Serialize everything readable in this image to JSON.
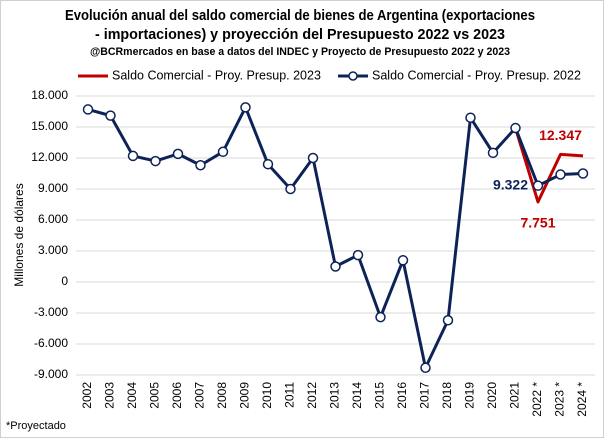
{
  "chart_data": {
    "type": "line",
    "title": [
      "Evolución anual del saldo comercial de bienes de Argentina (exportaciones",
      "- importaciones) y proyección del Presupuesto 2022 vs 2023"
    ],
    "subtitle": "@BCRmercados en base a datos del INDEC y Proyecto de Presupuesto 2022 y 2023",
    "ylabel": "Millones de dólares",
    "footnote": "*Proyectado",
    "categories": [
      "2002",
      "2003",
      "2004",
      "2005",
      "2006",
      "2007",
      "2008",
      "2009",
      "2010",
      "2011",
      "2012",
      "2013",
      "2014",
      "2015",
      "2016",
      "2017",
      "2018",
      "2019",
      "2020",
      "2021",
      "2022 *",
      "2023 *",
      "2024 *"
    ],
    "series": [
      {
        "name": "Saldo Comercial - Proy. Presup. 2023",
        "color": "#c00000",
        "values": [
          null,
          null,
          null,
          null,
          null,
          null,
          null,
          null,
          null,
          null,
          null,
          null,
          null,
          null,
          null,
          null,
          null,
          null,
          null,
          14900,
          7751,
          12347,
          12200
        ],
        "value_labels": [
          null,
          null,
          null,
          null,
          null,
          null,
          null,
          null,
          null,
          null,
          null,
          null,
          null,
          null,
          null,
          null,
          null,
          null,
          null,
          null,
          "7.751",
          "12.347",
          null
        ]
      },
      {
        "name": "Saldo Comercial - Proy. Presup. 2022",
        "color": "#0d2357",
        "markers": true,
        "values": [
          16700,
          16100,
          12200,
          11700,
          12400,
          11300,
          12600,
          16900,
          11400,
          9000,
          12000,
          1500,
          2600,
          -3400,
          2100,
          -8300,
          -3700,
          15900,
          12500,
          14900,
          9322,
          10400,
          10500
        ],
        "value_labels": [
          null,
          null,
          null,
          null,
          null,
          null,
          null,
          null,
          null,
          null,
          null,
          null,
          null,
          null,
          null,
          null,
          null,
          null,
          null,
          null,
          "9.322",
          null,
          null
        ]
      }
    ],
    "ylim": [
      -9000,
      18000
    ],
    "yticks": [
      {
        "value": -9000,
        "label": "-9.000"
      },
      {
        "value": -6000,
        "label": "-6.000"
      },
      {
        "value": -3000,
        "label": "-3.000"
      },
      0,
      {
        "value": 3000,
        "label": "3.000"
      },
      {
        "value": 6000,
        "label": "6.000"
      },
      {
        "value": 9000,
        "label": "9.000"
      },
      {
        "value": 12000,
        "label": "12.000"
      },
      {
        "value": 15000,
        "label": "15.000"
      },
      {
        "value": 18000,
        "label": "18.000"
      }
    ],
    "grid": true
  }
}
